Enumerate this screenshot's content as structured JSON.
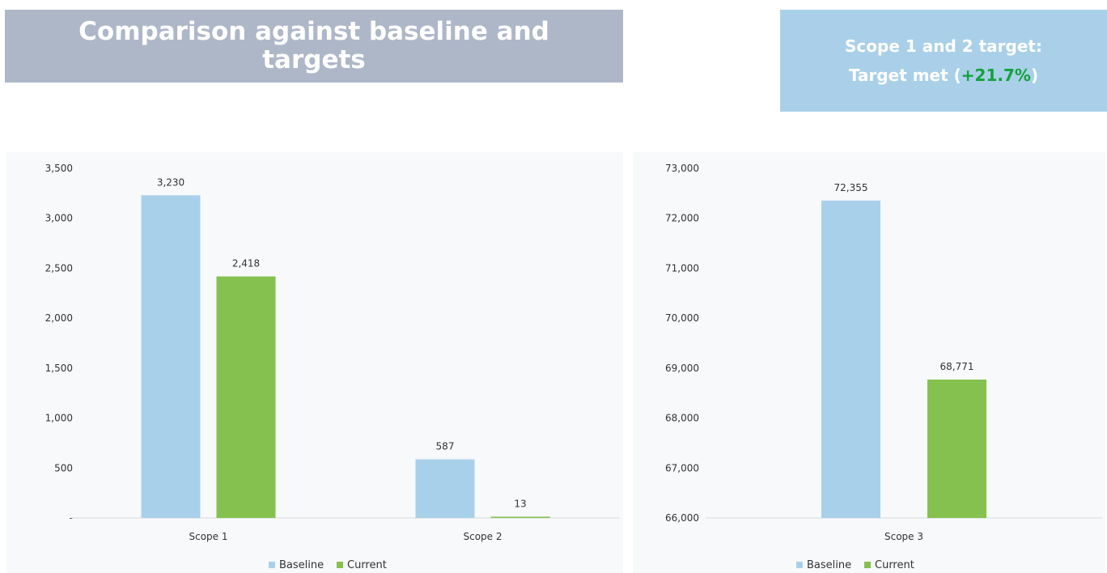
{
  "header": {
    "title_line1": "Comparison against baseline and",
    "title_line2": "targets"
  },
  "target_box": {
    "label": "Scope 1 and 2 target:",
    "status_prefix": "Target met (",
    "percent": "+21.7%",
    "status_suffix": ")"
  },
  "colors": {
    "baseline": "#a9d0ea",
    "current": "#85c14f",
    "title_banner": "#aeb7c8",
    "target_box": "#a9d0e8",
    "percent_text": "#12a23a"
  },
  "chart_data": [
    {
      "type": "bar",
      "categories": [
        "Scope 1",
        "Scope 2"
      ],
      "series": [
        {
          "name": "Baseline",
          "values": [
            3230,
            587
          ],
          "labels": [
            "3,230",
            "587"
          ]
        },
        {
          "name": "Current",
          "values": [
            2418,
            13
          ],
          "labels": [
            "2,418",
            "13"
          ]
        }
      ],
      "ylim": [
        0,
        3500
      ],
      "yticks": [
        0,
        500,
        1000,
        1500,
        2000,
        2500,
        3000,
        3500
      ],
      "ytick_labels": [
        "-",
        "500",
        "1,000",
        "1,500",
        "2,000",
        "2,500",
        "3,000",
        "3,500"
      ],
      "legend_position": "bottom",
      "grid": false
    },
    {
      "type": "bar",
      "categories": [
        "Scope 3"
      ],
      "series": [
        {
          "name": "Baseline",
          "values": [
            72355
          ],
          "labels": [
            "72,355"
          ]
        },
        {
          "name": "Current",
          "values": [
            68771
          ],
          "labels": [
            "68,771"
          ]
        }
      ],
      "ylim": [
        66000,
        73000
      ],
      "yticks": [
        66000,
        67000,
        68000,
        69000,
        70000,
        71000,
        72000,
        73000
      ],
      "ytick_labels": [
        "66,000",
        "67,000",
        "68,000",
        "69,000",
        "70,000",
        "71,000",
        "72,000",
        "73,000"
      ],
      "legend_position": "bottom",
      "grid": false
    }
  ]
}
